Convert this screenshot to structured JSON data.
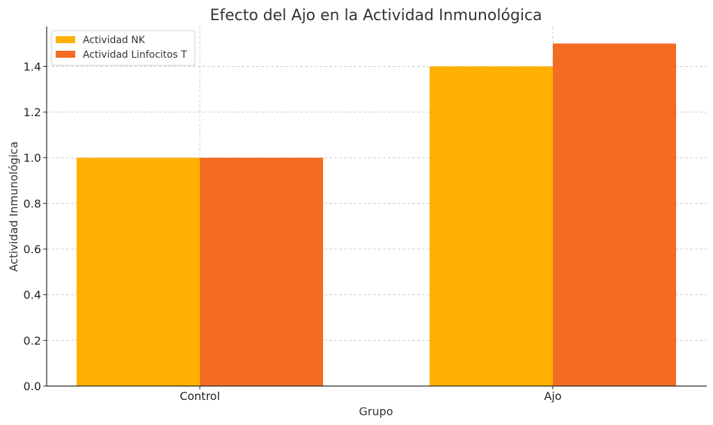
{
  "chart_data": {
    "type": "bar",
    "title": "Efecto del Ajo en la Actividad Inmunológica",
    "xlabel": "Grupo",
    "ylabel": "Actividad Inmunológica",
    "categories": [
      "Control",
      "Ajo"
    ],
    "series": [
      {
        "name": "Actividad NK",
        "values": [
          1.0,
          1.4
        ],
        "color": "#FFB000"
      },
      {
        "name": "Actividad Linfocitos T",
        "values": [
          1.0,
          1.5
        ],
        "color": "#F46B22"
      }
    ],
    "ylim": [
      0,
      1.575
    ],
    "yticks": [
      "0.0",
      "0.2",
      "0.4",
      "0.6",
      "0.8",
      "1.0",
      "1.2",
      "1.4"
    ],
    "grid": true,
    "legend": "top-left"
  }
}
